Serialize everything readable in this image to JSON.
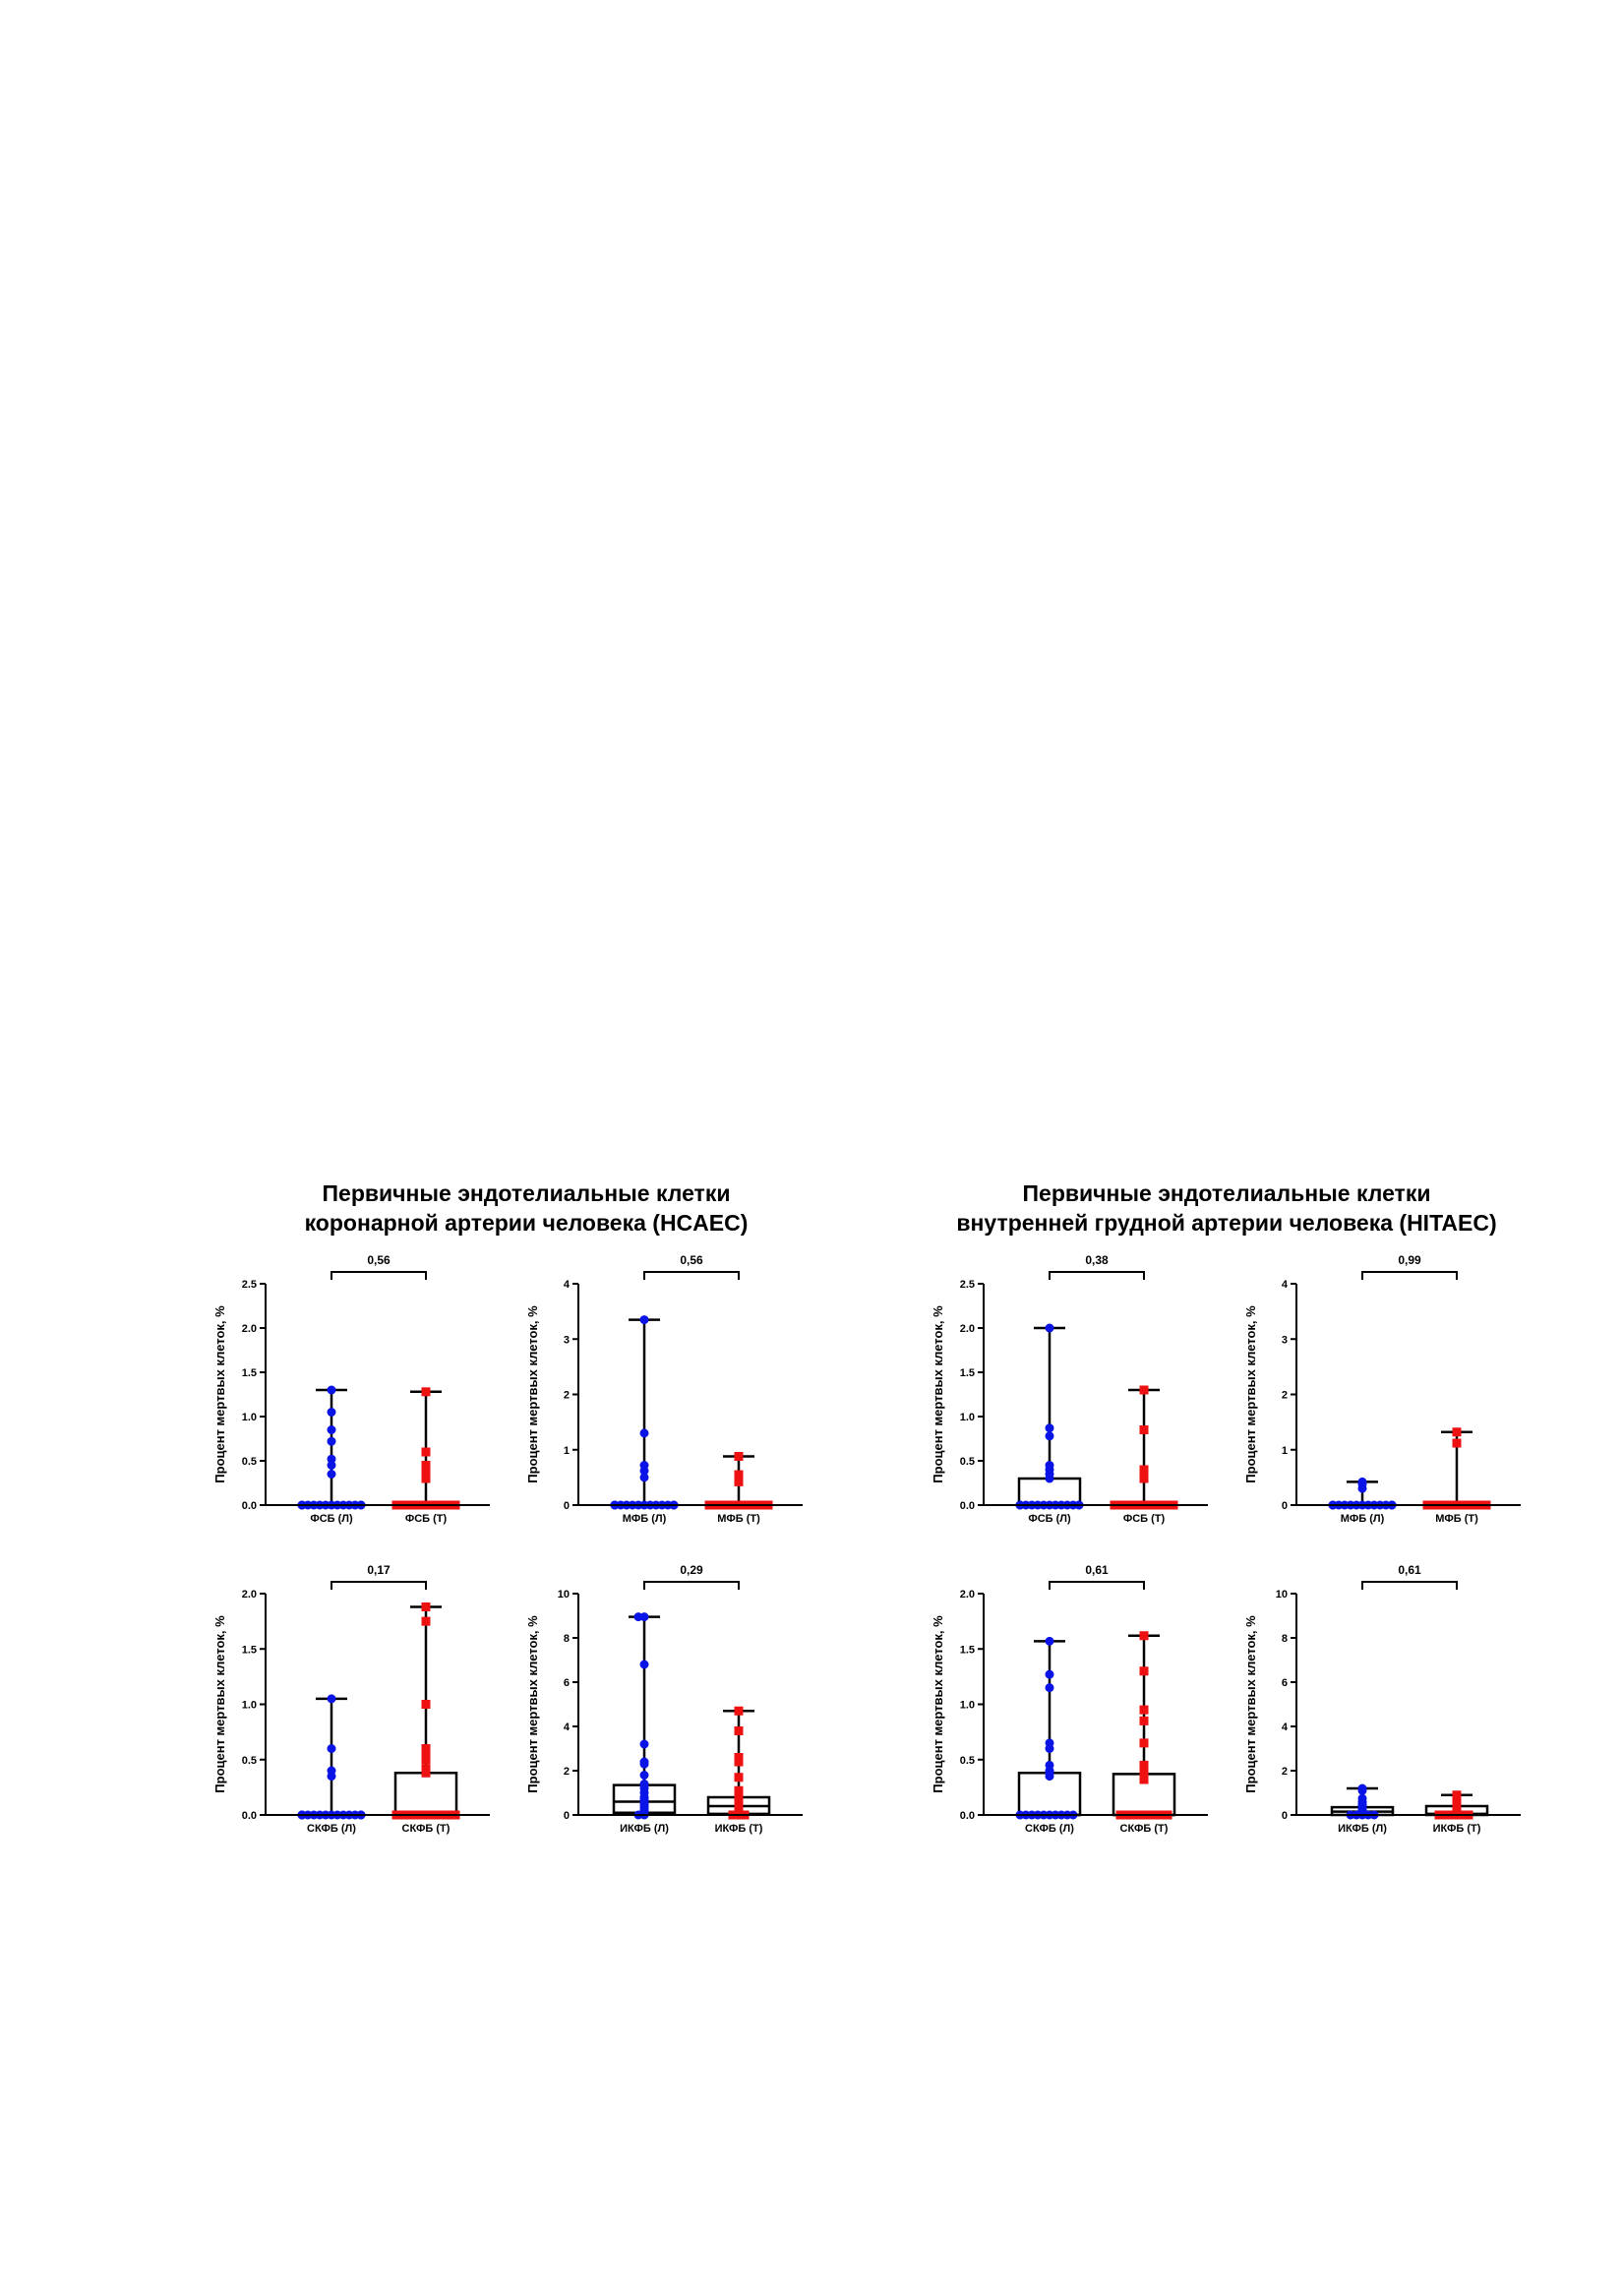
{
  "groups": [
    {
      "title_line1": "Первичные эндотелиальные клетки",
      "title_line2": "коронарной артерии человека (HCAEC)"
    },
    {
      "title_line1": "Первичные эндотелиальные клетки",
      "title_line2": "внутренней грудной артерии человека (HITAEC)"
    }
  ],
  "colors": {
    "left_series": "#0a14e6",
    "right_series": "#ee1111",
    "frame": "#000000"
  },
  "chart_data": [
    {
      "type": "box-scatter",
      "ylabel": "Процент мертвых клеток, %",
      "ylim": [
        0,
        2.5
      ],
      "yticks": [
        "0.0",
        "0.5",
        "1.0",
        "1.5",
        "2.0",
        "2.5"
      ],
      "p_value": "0,56",
      "series": [
        {
          "name": "ФСБ (Л)",
          "box": [
            0,
            0,
            0
          ],
          "whisker_max": 1.3,
          "points": [
            1.3,
            1.05,
            0.85,
            0.72,
            0.52,
            0.45,
            0.35,
            0,
            0,
            0,
            0,
            0,
            0,
            0,
            0,
            0,
            0,
            0,
            0,
            0,
            0
          ]
        },
        {
          "name": "ФСБ (Т)",
          "box": [
            0,
            0,
            0
          ],
          "whisker_max": 1.28,
          "points": [
            1.28,
            0.6,
            0.45,
            0.35,
            0.3,
            0,
            0,
            0,
            0,
            0,
            0,
            0,
            0,
            0,
            0,
            0,
            0,
            0,
            0,
            0,
            0
          ]
        }
      ]
    },
    {
      "type": "box-scatter",
      "ylabel": "Процент мертвых клеток, %",
      "ylim": [
        0,
        4
      ],
      "yticks": [
        "0",
        "1",
        "2",
        "3",
        "4"
      ],
      "p_value": "0,56",
      "series": [
        {
          "name": "МФБ (Л)",
          "box": [
            0,
            0,
            0
          ],
          "whisker_max": 3.35,
          "points": [
            3.35,
            1.3,
            0.72,
            0.62,
            0.5,
            0,
            0,
            0,
            0,
            0,
            0,
            0,
            0,
            0,
            0,
            0,
            0,
            0,
            0,
            0
          ]
        },
        {
          "name": "МФБ (Т)",
          "box": [
            0,
            0,
            0
          ],
          "whisker_max": 0.88,
          "points": [
            0.88,
            0.55,
            0.48,
            0.42,
            0,
            0,
            0,
            0,
            0,
            0,
            0,
            0,
            0,
            0,
            0,
            0,
            0,
            0,
            0,
            0
          ]
        }
      ]
    },
    {
      "type": "box-scatter",
      "ylabel": "Процент мертвых клеток, %",
      "ylim": [
        0,
        2.5
      ],
      "yticks": [
        "0.0",
        "0.5",
        "1.0",
        "1.5",
        "2.0",
        "2.5"
      ],
      "p_value": "0,38",
      "series": [
        {
          "name": "ФСБ (Л)",
          "box": [
            0,
            0,
            0.3
          ],
          "whisker_max": 2.0,
          "points": [
            2.0,
            0.87,
            0.78,
            0.45,
            0.4,
            0.35,
            0.3,
            0,
            0,
            0,
            0,
            0,
            0,
            0,
            0,
            0,
            0,
            0,
            0,
            0
          ]
        },
        {
          "name": "ФСБ (Т)",
          "box": [
            0,
            0,
            0
          ],
          "whisker_max": 1.3,
          "points": [
            1.3,
            0.85,
            0.4,
            0.35,
            0.3,
            0,
            0,
            0,
            0,
            0,
            0,
            0,
            0,
            0,
            0,
            0,
            0,
            0,
            0,
            0
          ]
        }
      ]
    },
    {
      "type": "box-scatter",
      "ylabel": "Процент мертвых клеток, %",
      "ylim": [
        0,
        4
      ],
      "yticks": [
        "0",
        "1",
        "2",
        "3",
        "4"
      ],
      "p_value": "0,99",
      "series": [
        {
          "name": "МФБ (Л)",
          "box": [
            0,
            0,
            0
          ],
          "whisker_max": 0.42,
          "points": [
            0.42,
            0.38,
            0.3,
            0,
            0,
            0,
            0,
            0,
            0,
            0,
            0,
            0,
            0,
            0,
            0,
            0,
            0,
            0
          ]
        },
        {
          "name": "МФБ (Т)",
          "box": [
            0,
            0,
            0
          ],
          "whisker_max": 1.32,
          "points": [
            1.32,
            1.12,
            0,
            0,
            0,
            0,
            0,
            0,
            0,
            0,
            0,
            0,
            0,
            0,
            0,
            0,
            0,
            0
          ]
        }
      ]
    },
    {
      "type": "box-scatter",
      "ylabel": "Процент мертвых клеток, %",
      "ylim": [
        0,
        2.0
      ],
      "yticks": [
        "0.0",
        "0.5",
        "1.0",
        "1.5",
        "2.0"
      ],
      "p_value": "0,17",
      "series": [
        {
          "name": "СКФБ (Л)",
          "box": [
            0,
            0,
            0
          ],
          "whisker_max": 1.05,
          "points": [
            1.05,
            0.6,
            0.4,
            0.35,
            0,
            0,
            0,
            0,
            0,
            0,
            0,
            0,
            0,
            0,
            0,
            0,
            0,
            0,
            0,
            0
          ]
        },
        {
          "name": "СКФБ (Т)",
          "box": [
            0,
            0,
            0.38
          ],
          "whisker_max": 1.88,
          "points": [
            1.88,
            1.75,
            1.0,
            0.6,
            0.55,
            0.5,
            0.42,
            0.38,
            0,
            0,
            0,
            0,
            0,
            0,
            0,
            0,
            0,
            0,
            0,
            0
          ]
        }
      ]
    },
    {
      "type": "box-scatter",
      "ylabel": "Процент мертвых клеток, %",
      "ylim": [
        0,
        10
      ],
      "yticks": [
        "0",
        "2",
        "4",
        "6",
        "8",
        "10"
      ],
      "p_value": "0,29",
      "series": [
        {
          "name": "ИКФБ (Л)",
          "box": [
            0.1,
            0.6,
            1.35
          ],
          "whisker_max": 8.95,
          "points": [
            8.95,
            8.95,
            6.8,
            3.2,
            2.4,
            2.3,
            1.8,
            1.4,
            1.35,
            1.2,
            1.0,
            0.8,
            0.7,
            0.65,
            0.6,
            0.5,
            0.4,
            0.3,
            0.2,
            0.1,
            0.05,
            0.0,
            0.0
          ]
        },
        {
          "name": "ИКФБ (Т)",
          "box": [
            0.05,
            0.4,
            0.8
          ],
          "whisker_max": 4.7,
          "points": [
            4.7,
            3.8,
            2.6,
            2.4,
            1.7,
            1.1,
            0.95,
            0.8,
            0.7,
            0.65,
            0.6,
            0.5,
            0.4,
            0.35,
            0.3,
            0.2,
            0.1,
            0.05,
            0.0,
            0.0,
            0.0
          ]
        }
      ]
    },
    {
      "type": "box-scatter",
      "ylabel": "Процент мертвых клеток, %",
      "ylim": [
        0,
        2.0
      ],
      "yticks": [
        "0.0",
        "0.5",
        "1.0",
        "1.5",
        "2.0"
      ],
      "p_value": "0,61",
      "series": [
        {
          "name": "СКФБ (Л)",
          "box": [
            0,
            0,
            0.38
          ],
          "whisker_max": 1.57,
          "points": [
            1.57,
            1.27,
            1.15,
            0.65,
            0.6,
            0.45,
            0.4,
            0.38,
            0.35,
            0,
            0,
            0,
            0,
            0,
            0,
            0,
            0,
            0,
            0
          ]
        },
        {
          "name": "СКФБ (Т)",
          "box": [
            0,
            0,
            0.37
          ],
          "whisker_max": 1.62,
          "points": [
            1.62,
            1.3,
            0.95,
            0.85,
            0.65,
            0.45,
            0.4,
            0.38,
            0.35,
            0.32,
            0,
            0,
            0,
            0,
            0,
            0,
            0,
            0,
            0
          ]
        }
      ]
    },
    {
      "type": "box-scatter",
      "ylabel": "Процент мертвых клеток, %",
      "ylim": [
        0,
        10
      ],
      "yticks": [
        "0",
        "2",
        "4",
        "6",
        "8",
        "10"
      ],
      "p_value": "0,61",
      "series": [
        {
          "name": "ИКФБ (Л)",
          "box": [
            0,
            0.15,
            0.35
          ],
          "whisker_max": 1.2,
          "points": [
            1.2,
            1.1,
            0.75,
            0.6,
            0.5,
            0.45,
            0.4,
            0.35,
            0.3,
            0.2,
            0.15,
            0.1,
            0.05,
            0,
            0,
            0,
            0,
            0
          ]
        },
        {
          "name": "ИКФБ (Т)",
          "box": [
            0,
            0.05,
            0.4
          ],
          "whisker_max": 0.9,
          "points": [
            0.9,
            0.85,
            0.55,
            0.5,
            0.45,
            0.4,
            0.35,
            0.25,
            0.15,
            0.05,
            0,
            0,
            0,
            0,
            0,
            0
          ]
        }
      ]
    }
  ]
}
